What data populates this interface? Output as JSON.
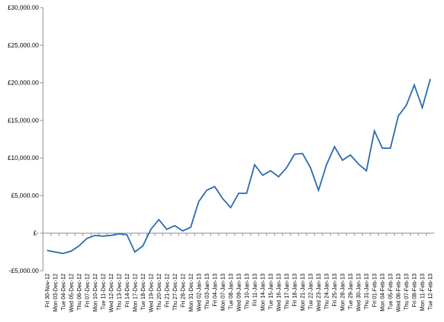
{
  "chart_data": {
    "type": "line",
    "categories": [
      "Fri 30-Nov-12",
      "Mon 03-Dec-12",
      "Tue 04-Dec-12",
      "Wed 05-Dec-12",
      "Thu 06-Dec-12",
      "Fri 07-Dec-12",
      "Mon 10-Dec-12",
      "Tue 11-Dec-12",
      "Wed 12-Dec-12",
      "Thu 13-Dec-12",
      "Fri 14-Dec-12",
      "Mon 17-Dec-12",
      "Tue 18-Dec-12",
      "Wed 19-Dec-12",
      "Thu 20-Dec-12",
      "Fri 21-Dec-12",
      "Thu 27-Dec-12",
      "Fri 28-Dec-12",
      "Mon 31-Dec-12",
      "Wed 02-Jan-13",
      "Thu 03-Jan-13",
      "Fri 04-Jan-13",
      "Mon 07-Jan-13",
      "Tue 08-Jan-13",
      "Wed 09-Jan-13",
      "Thu 10-Jan-13",
      "Fri 11-Jan-13",
      "Mon 14-Jan-13",
      "Tue 15-Jan-13",
      "Wed 16-Jan-13",
      "Thu 17-Jan-13",
      "Fri 18-Jan-13",
      "Mon 21-Jan-13",
      "Tue 22-Jan-13",
      "Wed 23-Jan-13",
      "Thu 24-Jan-13",
      "Fri 25-Jan-13",
      "Mon 28-Jan-13",
      "Tue 29-Jan-13",
      "Wed 30-Jan-13",
      "Thu 31-Jan-13",
      "Fri 01-Feb-13",
      "Mon 04-Feb-13",
      "Tue 05-Feb-13",
      "Wed 06-Feb-13",
      "Thu 07-Feb-13",
      "Fri 08-Feb-13",
      "Mon 11-Feb-13",
      "Tue 12-Feb-13"
    ],
    "values": [
      -2300,
      -2500,
      -2700,
      -2400,
      -1700,
      -700,
      -300,
      -400,
      -300,
      -100,
      -200,
      -2500,
      -1700,
      500,
      1800,
      500,
      1000,
      300,
      800,
      4200,
      5700,
      6200,
      4600,
      3400,
      5300,
      5300,
      9100,
      7700,
      8300,
      7500,
      8700,
      10500,
      10600,
      8700,
      5700,
      9100,
      11500,
      9700,
      10400,
      9200,
      8300,
      13600,
      11300,
      11300,
      15600,
      17000,
      19700,
      16700,
      20500
    ],
    "color": "#2e6db4",
    "ylim": [
      -5000,
      30000
    ],
    "yticks": [
      {
        "value": -5000,
        "label": "-£5,000.00"
      },
      {
        "value": 0,
        "label": "£-"
      },
      {
        "value": 5000,
        "label": "£5,000.00"
      },
      {
        "value": 10000,
        "label": "£10,000.00"
      },
      {
        "value": 15000,
        "label": "£15,000.00"
      },
      {
        "value": 20000,
        "label": "£20,000.00"
      },
      {
        "value": 25000,
        "label": "£25,000.00"
      },
      {
        "value": 30000,
        "label": "£30,000.00"
      }
    ],
    "grid": false
  }
}
